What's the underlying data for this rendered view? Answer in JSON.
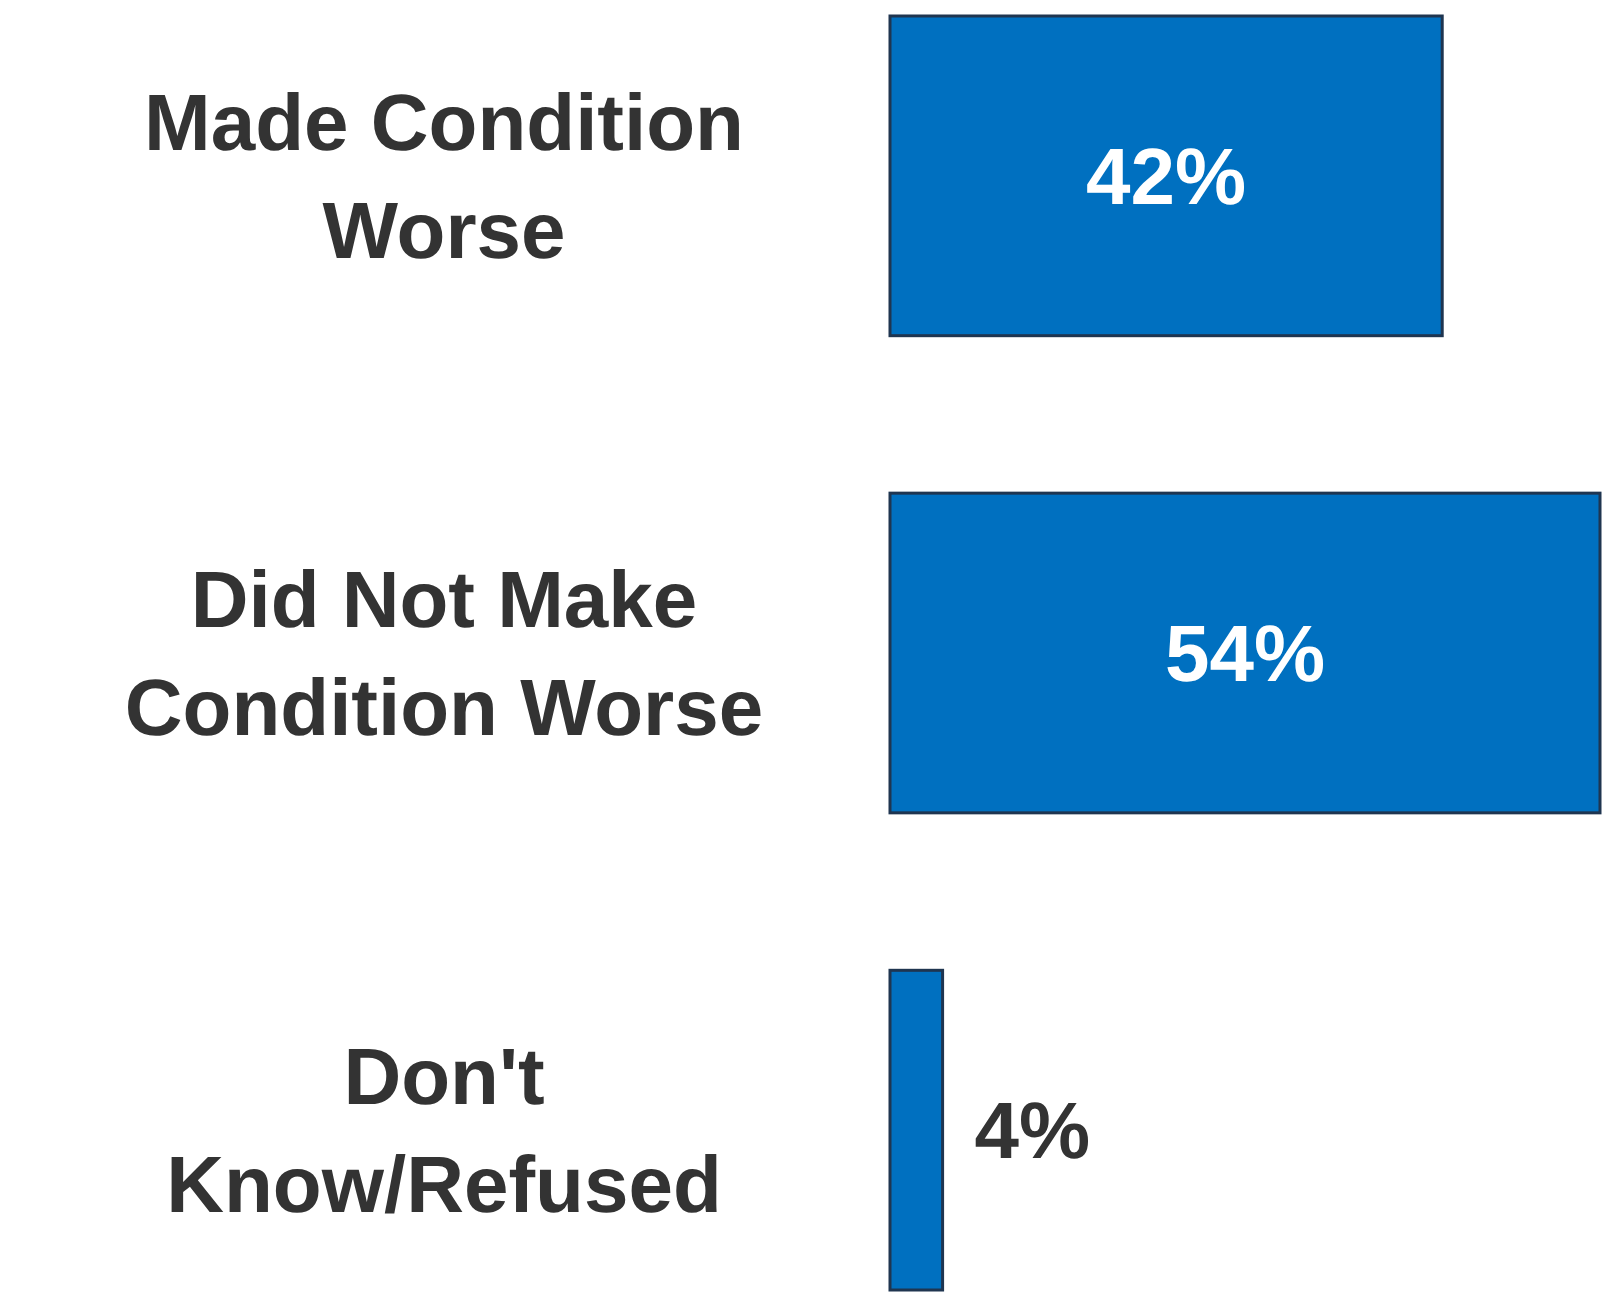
{
  "chart_data": {
    "type": "bar",
    "orientation": "horizontal",
    "categories": [
      "Made Condition Worse",
      "Did Not Make Condition Worse",
      "Don't Know/Refused"
    ],
    "values": [
      42,
      54,
      4
    ],
    "value_labels": [
      "42%",
      "54%",
      "4%"
    ],
    "color": "#0070c0"
  }
}
